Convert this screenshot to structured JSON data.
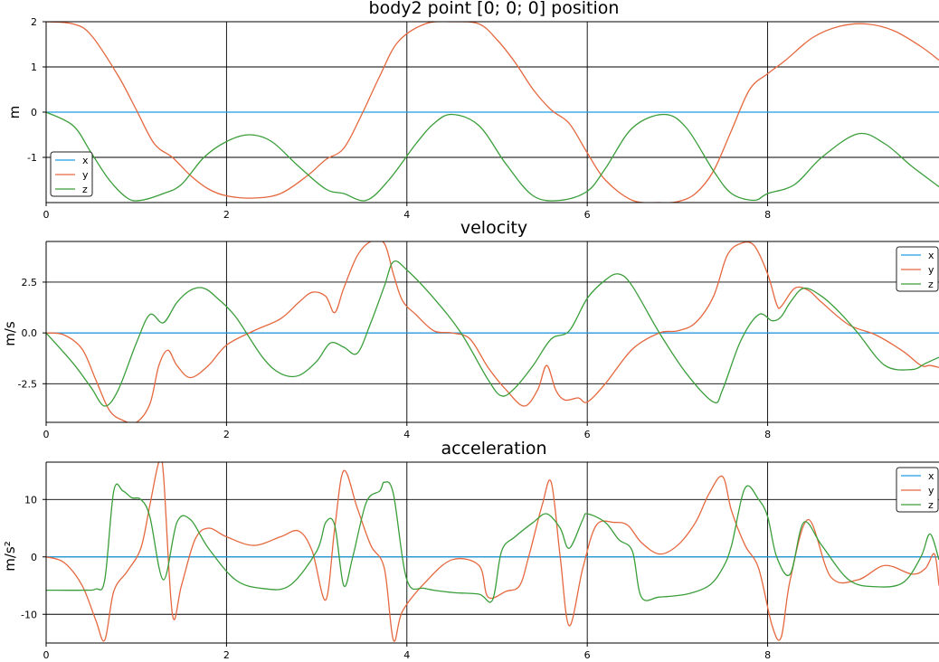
{
  "chart_data": [
    {
      "type": "line",
      "title": "body2 point [0; 0; 0] position",
      "ylabel": "m",
      "xlim": [
        0,
        9.9
      ],
      "ylim": [
        -2,
        2
      ],
      "xticks": [
        0,
        2,
        4,
        6,
        8
      ],
      "xtick_labels": [
        "0",
        "2",
        "4",
        "6",
        "8"
      ],
      "yticks": [
        2,
        1,
        0,
        -1
      ],
      "ytick_labels": [
        "2",
        "1",
        "0",
        "-1"
      ],
      "grid": true,
      "legend": "lower-left",
      "series": [
        {
          "name": "x",
          "color": "#1f9ee6",
          "x": [
            0,
            9.9
          ],
          "y": [
            0,
            0
          ]
        },
        {
          "name": "y",
          "color": "#e5683f",
          "x": [
            0,
            0.3,
            0.5,
            0.8,
            1.0,
            1.2,
            1.4,
            1.6,
            1.8,
            2.0,
            2.3,
            2.6,
            2.9,
            3.1,
            3.3,
            3.5,
            3.7,
            3.9,
            4.2,
            4.5,
            4.8,
            5.0,
            5.2,
            5.4,
            5.6,
            5.8,
            6.0,
            6.2,
            6.5,
            6.8,
            7.0,
            7.2,
            7.4,
            7.6,
            7.8,
            8.0,
            8.2,
            8.5,
            8.8,
            9.1,
            9.4,
            9.7,
            9.9
          ],
          "y": [
            2.0,
            1.95,
            1.7,
            0.8,
            0.05,
            -0.7,
            -1.0,
            -1.4,
            -1.7,
            -1.85,
            -1.9,
            -1.8,
            -1.4,
            -1.05,
            -0.8,
            -0.05,
            0.8,
            1.55,
            1.95,
            2.0,
            1.95,
            1.6,
            1.1,
            0.5,
            0.05,
            -0.25,
            -0.9,
            -1.5,
            -1.95,
            -2.0,
            -1.98,
            -1.8,
            -1.3,
            -0.4,
            0.5,
            0.85,
            1.15,
            1.65,
            1.9,
            1.95,
            1.8,
            1.45,
            1.15
          ]
        },
        {
          "name": "z",
          "color": "#3a9e3a",
          "x": [
            0,
            0.3,
            0.5,
            0.7,
            0.9,
            1.05,
            1.3,
            1.5,
            1.75,
            2.0,
            2.25,
            2.5,
            2.8,
            3.1,
            3.3,
            3.55,
            3.8,
            4.1,
            4.3,
            4.5,
            4.8,
            5.1,
            5.4,
            5.7,
            6.0,
            6.2,
            6.5,
            6.85,
            7.1,
            7.4,
            7.6,
            7.85,
            8.0,
            8.3,
            8.6,
            9.0,
            9.3,
            9.6,
            9.9
          ],
          "y": [
            0,
            -0.3,
            -0.9,
            -1.5,
            -1.9,
            -1.95,
            -1.8,
            -1.6,
            -1.0,
            -0.65,
            -0.5,
            -0.65,
            -1.2,
            -1.7,
            -1.8,
            -1.95,
            -1.5,
            -0.7,
            -0.25,
            -0.05,
            -0.3,
            -1.15,
            -1.85,
            -1.95,
            -1.75,
            -1.25,
            -0.35,
            -0.05,
            -0.35,
            -1.3,
            -1.8,
            -1.95,
            -1.8,
            -1.6,
            -1.0,
            -0.48,
            -0.7,
            -1.2,
            -1.65
          ]
        }
      ]
    },
    {
      "type": "line",
      "title": "velocity",
      "ylabel": "m/s",
      "xlim": [
        0,
        9.9
      ],
      "ylim": [
        -4.4,
        4.5
      ],
      "xticks": [
        0,
        2,
        4,
        6,
        8
      ],
      "xtick_labels": [
        "0",
        "2",
        "4",
        "6",
        "8"
      ],
      "yticks": [
        2.5,
        0,
        -2.5
      ],
      "ytick_labels": [
        "2.5",
        "0.0",
        "-2.5"
      ],
      "grid": true,
      "legend": "upper-right",
      "series": [
        {
          "name": "x",
          "color": "#1f9ee6",
          "x": [
            0,
            9.9
          ],
          "y": [
            0,
            0
          ]
        },
        {
          "name": "y",
          "color": "#e5683f",
          "x": [
            0,
            0.2,
            0.4,
            0.55,
            0.7,
            0.85,
            1.0,
            1.15,
            1.25,
            1.35,
            1.45,
            1.6,
            1.8,
            2.0,
            2.3,
            2.6,
            2.8,
            2.95,
            3.1,
            3.2,
            3.3,
            3.45,
            3.6,
            3.75,
            3.85,
            3.95,
            4.1,
            4.3,
            4.5,
            4.7,
            4.9,
            5.1,
            5.3,
            5.45,
            5.55,
            5.65,
            5.75,
            5.9,
            6.0,
            6.2,
            6.5,
            6.8,
            7.0,
            7.2,
            7.4,
            7.55,
            7.7,
            7.85,
            8.0,
            8.1,
            8.15,
            8.3,
            8.45,
            8.6,
            8.9,
            9.2,
            9.5,
            9.7,
            9.8,
            9.9
          ],
          "y": [
            0,
            -0.1,
            -0.8,
            -2.3,
            -3.8,
            -4.3,
            -4.4,
            -3.5,
            -1.6,
            -0.85,
            -1.6,
            -2.2,
            -1.6,
            -0.6,
            0.1,
            0.7,
            1.5,
            2.0,
            1.8,
            1.0,
            2.2,
            3.8,
            4.5,
            4.4,
            2.9,
            1.6,
            0.9,
            0.1,
            0.0,
            -0.3,
            -1.7,
            -2.8,
            -3.6,
            -2.8,
            -1.6,
            -2.8,
            -3.3,
            -3.2,
            -3.4,
            -2.5,
            -0.8,
            0.0,
            0.1,
            0.5,
            1.8,
            3.8,
            4.4,
            4.3,
            2.9,
            1.4,
            1.3,
            2.2,
            2.1,
            1.5,
            0.4,
            -0.1,
            -0.9,
            -1.6,
            -1.6,
            -1.7
          ]
        },
        {
          "name": "z",
          "color": "#3a9e3a",
          "x": [
            0,
            0.3,
            0.5,
            0.65,
            0.8,
            1.0,
            1.15,
            1.3,
            1.45,
            1.6,
            1.75,
            1.9,
            2.1,
            2.4,
            2.6,
            2.8,
            3.0,
            3.15,
            3.3,
            3.45,
            3.6,
            3.75,
            3.85,
            4.0,
            4.3,
            4.6,
            4.9,
            5.05,
            5.2,
            5.4,
            5.6,
            5.8,
            6.0,
            6.2,
            6.35,
            6.5,
            6.8,
            7.1,
            7.4,
            7.5,
            7.7,
            7.9,
            8.05,
            8.15,
            8.25,
            8.4,
            8.6,
            8.8,
            9.0,
            9.3,
            9.6,
            9.75,
            9.9
          ],
          "y": [
            0,
            -1.5,
            -2.7,
            -3.6,
            -2.8,
            -0.5,
            0.9,
            0.5,
            1.5,
            2.1,
            2.2,
            1.7,
            0.8,
            -1.2,
            -2.0,
            -2.1,
            -1.4,
            -0.5,
            -0.7,
            -1.0,
            0.5,
            2.3,
            3.5,
            3.1,
            1.7,
            0.0,
            -2.3,
            -3.1,
            -2.7,
            -1.6,
            -0.3,
            0.1,
            1.7,
            2.6,
            2.9,
            2.3,
            0.0,
            -2.0,
            -3.4,
            -2.8,
            -0.4,
            0.9,
            0.6,
            0.8,
            1.5,
            2.2,
            1.8,
            1.0,
            0.0,
            -1.6,
            -1.8,
            -1.5,
            -1.2
          ]
        }
      ]
    },
    {
      "type": "line",
      "title": "acceleration",
      "ylabel": "m/s²",
      "xlim": [
        0,
        9.9
      ],
      "ylim": [
        -15,
        16.5
      ],
      "xticks": [
        0,
        2,
        4,
        6,
        8
      ],
      "xtick_labels": [
        "0",
        "2",
        "4",
        "6",
        "8"
      ],
      "yticks": [
        10,
        0,
        -10
      ],
      "ytick_labels": [
        "10",
        "0",
        "-10"
      ],
      "grid": true,
      "legend": "upper-right",
      "series": [
        {
          "name": "x",
          "color": "#1f9ee6",
          "x": [
            0,
            9.9
          ],
          "y": [
            0,
            0
          ]
        },
        {
          "name": "y",
          "color": "#e5683f",
          "x": [
            0,
            0.2,
            0.4,
            0.55,
            0.65,
            0.75,
            0.9,
            1.05,
            1.15,
            1.25,
            1.3,
            1.4,
            1.5,
            1.65,
            1.8,
            2.0,
            2.3,
            2.6,
            2.8,
            2.95,
            3.1,
            3.2,
            3.3,
            3.45,
            3.6,
            3.75,
            3.85,
            3.95,
            4.2,
            4.5,
            4.8,
            4.9,
            5.1,
            5.25,
            5.35,
            5.5,
            5.6,
            5.7,
            5.8,
            5.95,
            6.1,
            6.3,
            6.45,
            6.6,
            6.8,
            7.0,
            7.2,
            7.35,
            7.5,
            7.6,
            7.75,
            7.9,
            8.05,
            8.15,
            8.25,
            8.45,
            8.7,
            9.0,
            9.3,
            9.6,
            9.75,
            9.85,
            9.9
          ],
          "y": [
            0,
            -1.0,
            -5.0,
            -11.0,
            -14.5,
            -6.0,
            -2.5,
            1.5,
            9.0,
            16.5,
            14.5,
            -10.0,
            -5.0,
            3.0,
            5.0,
            3.5,
            2.0,
            3.5,
            4.5,
            1.0,
            -7.5,
            5.0,
            15.0,
            8.5,
            2.0,
            -2.0,
            -14.5,
            -9.5,
            -4.5,
            -0.5,
            -1.5,
            -7.0,
            -6.0,
            -5.0,
            0.0,
            9.0,
            13.0,
            0.0,
            -12.0,
            -2.0,
            5.5,
            6.0,
            5.5,
            2.5,
            0.5,
            2.0,
            6.0,
            11.0,
            14.0,
            8.0,
            2.0,
            -2.0,
            -12.0,
            -14.0,
            -4.0,
            6.5,
            -3.5,
            -4.0,
            -1.5,
            -3.0,
            -2.0,
            0.5,
            -5.0
          ]
        },
        {
          "name": "z",
          "color": "#3a9e3a",
          "x": [
            0,
            0.4,
            0.55,
            0.65,
            0.75,
            0.85,
            0.95,
            1.05,
            1.15,
            1.3,
            1.45,
            1.6,
            1.8,
            2.1,
            2.4,
            2.7,
            3.0,
            3.1,
            3.2,
            3.3,
            3.4,
            3.55,
            3.7,
            3.75,
            3.85,
            4.0,
            4.2,
            4.5,
            4.8,
            4.95,
            5.05,
            5.2,
            5.4,
            5.55,
            5.7,
            5.8,
            5.95,
            6.0,
            6.2,
            6.35,
            6.5,
            6.6,
            6.8,
            7.1,
            7.35,
            7.5,
            7.6,
            7.75,
            7.9,
            8.0,
            8.1,
            8.25,
            8.4,
            8.6,
            8.9,
            9.2,
            9.5,
            9.7,
            9.8,
            9.9
          ],
          "y": [
            -5.8,
            -5.8,
            -5.6,
            -4.0,
            11.5,
            11.5,
            10.3,
            10.0,
            7.0,
            -4.0,
            6.0,
            6.5,
            1.5,
            -4.0,
            -5.5,
            -5.0,
            1.0,
            6.0,
            5.5,
            -5.0,
            0.0,
            9.5,
            11.5,
            13.0,
            11.0,
            -4.0,
            -5.5,
            -6.2,
            -6.5,
            -7.5,
            1.0,
            3.5,
            6.0,
            7.5,
            5.0,
            1.5,
            6.5,
            7.5,
            6.0,
            3.0,
            1.0,
            -7.0,
            -7.0,
            -6.5,
            -5.0,
            -2.0,
            2.0,
            12.0,
            10.0,
            7.0,
            0.0,
            -3.0,
            6.0,
            2.0,
            -4.0,
            -5.2,
            -4.5,
            0.0,
            4.0,
            -0.5
          ]
        }
      ]
    }
  ]
}
